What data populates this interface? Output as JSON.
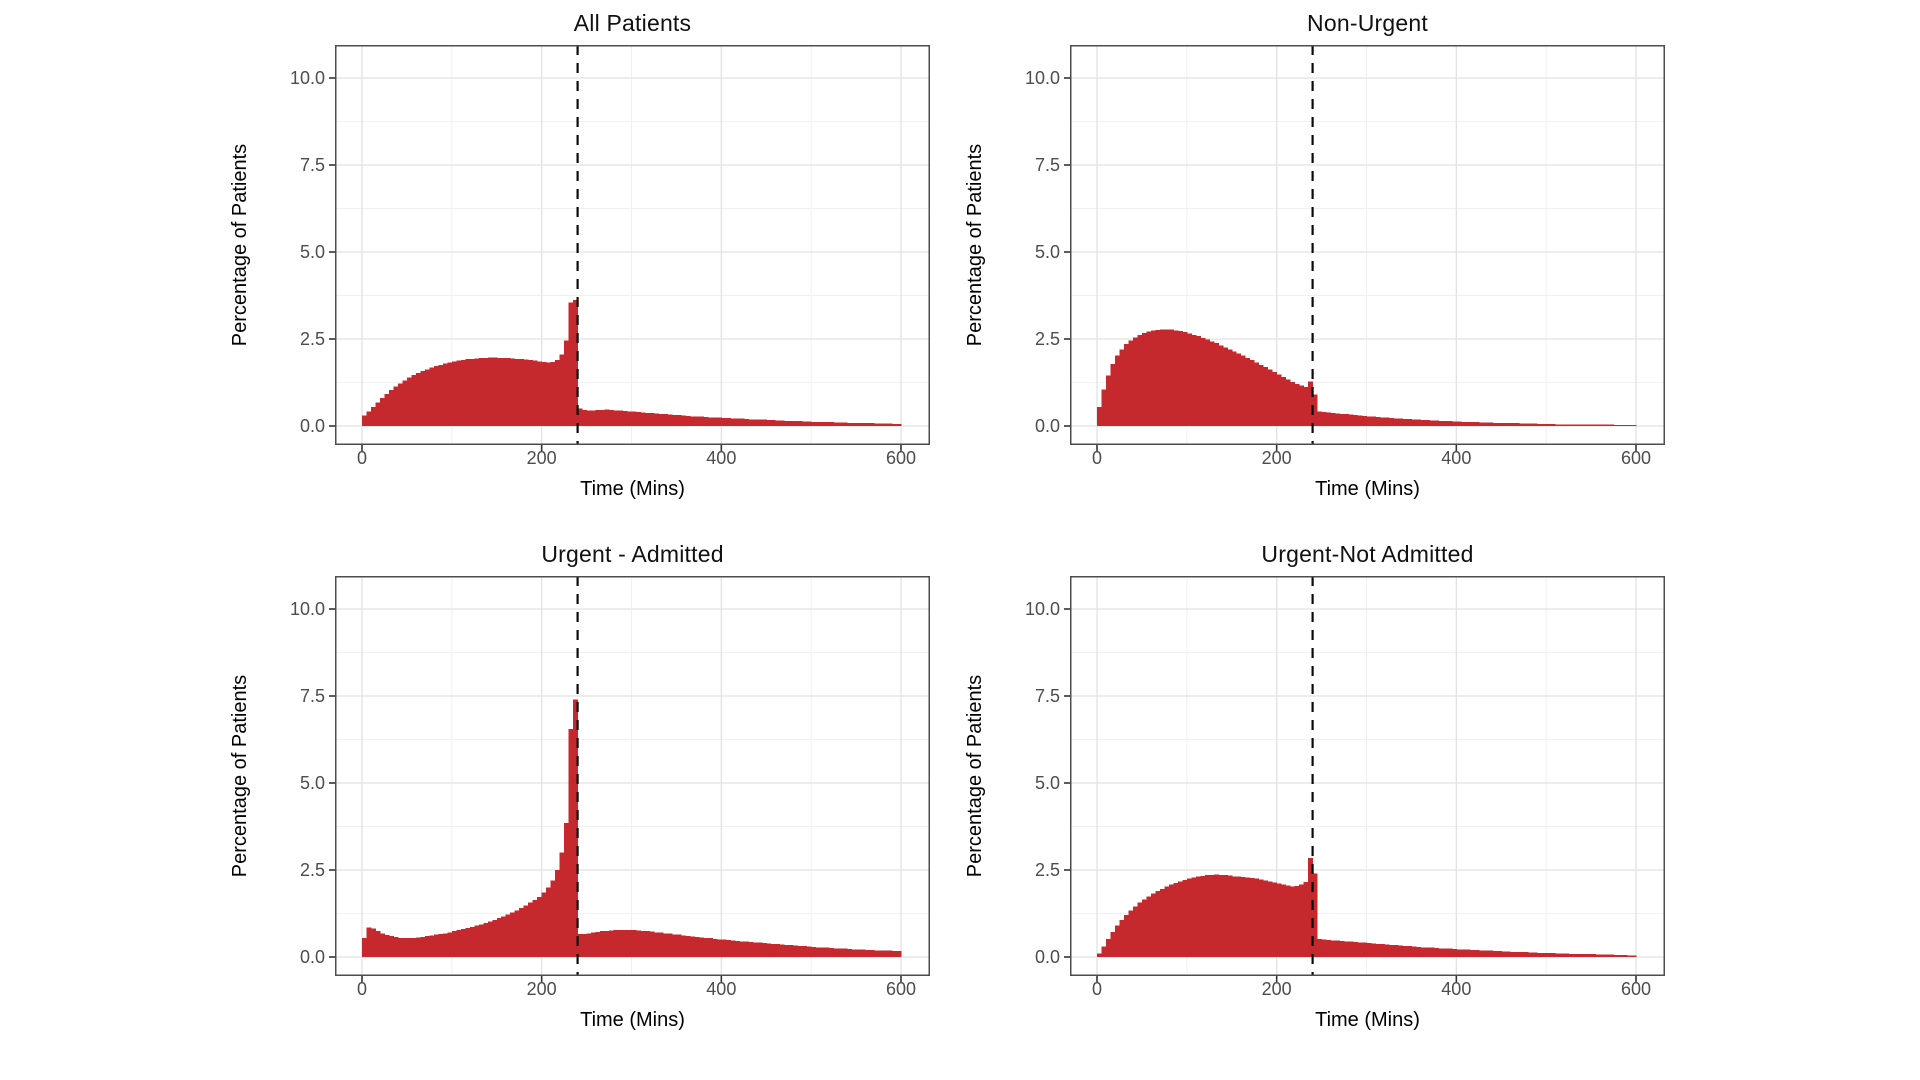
{
  "figure": {
    "y_axis_title": "Percentage of Patients",
    "x_axis_title": "Time (Mins)",
    "y_tick_labels": [
      "0.0",
      "2.5",
      "5.0",
      "7.5",
      "10.0"
    ],
    "x_tick_labels": [
      "0",
      "200",
      "400",
      "600"
    ],
    "colors": {
      "bar": "#C5282D",
      "grid_major": "#e2e2e2",
      "grid_minor": "#f0f0f0",
      "panel_border": "#4d4d4d",
      "tick_mark": "#333333",
      "tick_label": "#4d4d4d",
      "reference_line": "#0a0a0a",
      "background": "#ffffff"
    }
  },
  "chart_data": [
    {
      "type": "bar",
      "subtype": "histogram",
      "title": "All Patients",
      "xlabel": "Time (Mins)",
      "ylabel": "Percentage of Patients",
      "xlim": [
        0,
        620
      ],
      "ylim": [
        0,
        10.5
      ],
      "x_ticks": [
        0,
        200,
        400,
        600
      ],
      "x_minor": [
        100,
        300,
        500
      ],
      "y_ticks": [
        0,
        2.5,
        5,
        7.5,
        10
      ],
      "y_minor": [
        1.25,
        3.75,
        6.25,
        8.75
      ],
      "grid": true,
      "reference_line_x": 240,
      "bin_width_mins": 5,
      "bin_start_mins": 0,
      "values_percent": [
        0.3,
        0.42,
        0.55,
        0.68,
        0.8,
        0.92,
        1.03,
        1.13,
        1.22,
        1.31,
        1.39,
        1.46,
        1.52,
        1.58,
        1.63,
        1.68,
        1.72,
        1.76,
        1.8,
        1.83,
        1.86,
        1.88,
        1.9,
        1.92,
        1.93,
        1.94,
        1.95,
        1.96,
        1.97,
        1.97,
        1.96,
        1.96,
        1.95,
        1.94,
        1.93,
        1.92,
        1.91,
        1.9,
        1.88,
        1.86,
        1.84,
        1.82,
        1.84,
        1.9,
        2.05,
        2.45,
        3.55,
        3.62,
        0.5,
        0.46,
        0.45,
        0.45,
        0.46,
        0.46,
        0.47,
        0.46,
        0.45,
        0.44,
        0.43,
        0.42,
        0.41,
        0.4,
        0.39,
        0.38,
        0.37,
        0.36,
        0.35,
        0.34,
        0.33,
        0.32,
        0.31,
        0.3,
        0.29,
        0.28,
        0.28,
        0.27,
        0.26,
        0.25,
        0.25,
        0.24,
        0.23,
        0.23,
        0.22,
        0.21,
        0.21,
        0.2,
        0.19,
        0.19,
        0.18,
        0.18,
        0.17,
        0.17,
        0.16,
        0.16,
        0.15,
        0.15,
        0.14,
        0.14,
        0.13,
        0.13,
        0.12,
        0.12,
        0.11,
        0.11,
        0.11,
        0.1,
        0.1,
        0.1,
        0.09,
        0.09,
        0.09,
        0.08,
        0.08,
        0.08,
        0.07,
        0.07,
        0.07,
        0.07,
        0.06,
        0.06
      ]
    },
    {
      "type": "bar",
      "subtype": "histogram",
      "title": "Non-Urgent",
      "xlabel": "Time (Mins)",
      "ylabel": "Percentage of Patients",
      "xlim": [
        0,
        620
      ],
      "ylim": [
        0,
        10.5
      ],
      "x_ticks": [
        0,
        200,
        400,
        600
      ],
      "x_minor": [
        100,
        300,
        500
      ],
      "y_ticks": [
        0,
        2.5,
        5,
        7.5,
        10
      ],
      "y_minor": [
        1.25,
        3.75,
        6.25,
        8.75
      ],
      "grid": true,
      "reference_line_x": 240,
      "bin_width_mins": 5,
      "bin_start_mins": 0,
      "values_percent": [
        0.55,
        1.05,
        1.45,
        1.78,
        2.02,
        2.2,
        2.35,
        2.46,
        2.55,
        2.62,
        2.67,
        2.71,
        2.74,
        2.76,
        2.77,
        2.78,
        2.77,
        2.75,
        2.73,
        2.7,
        2.66,
        2.62,
        2.58,
        2.53,
        2.48,
        2.43,
        2.38,
        2.32,
        2.26,
        2.2,
        2.14,
        2.08,
        2.02,
        1.96,
        1.9,
        1.83,
        1.76,
        1.69,
        1.62,
        1.55,
        1.48,
        1.41,
        1.34,
        1.27,
        1.21,
        1.16,
        1.12,
        1.28,
        0.9,
        0.42,
        0.4,
        0.39,
        0.38,
        0.36,
        0.35,
        0.34,
        0.33,
        0.31,
        0.3,
        0.29,
        0.28,
        0.27,
        0.26,
        0.25,
        0.24,
        0.23,
        0.22,
        0.21,
        0.2,
        0.2,
        0.19,
        0.18,
        0.17,
        0.17,
        0.16,
        0.16,
        0.15,
        0.14,
        0.14,
        0.13,
        0.13,
        0.12,
        0.12,
        0.11,
        0.11,
        0.1,
        0.1,
        0.1,
        0.09,
        0.09,
        0.09,
        0.08,
        0.08,
        0.08,
        0.07,
        0.07,
        0.07,
        0.07,
        0.06,
        0.06,
        0.06,
        0.06,
        0.05,
        0.05,
        0.05,
        0.05,
        0.05,
        0.05,
        0.04,
        0.04,
        0.04,
        0.04,
        0.04,
        0.04,
        0.04,
        0.03,
        0.03,
        0.03,
        0.03,
        0.03
      ]
    },
    {
      "type": "bar",
      "subtype": "histogram",
      "title": "Urgent - Admitted",
      "xlabel": "Time (Mins)",
      "ylabel": "Percentage of Patients",
      "xlim": [
        0,
        620
      ],
      "ylim": [
        0,
        10.5
      ],
      "x_ticks": [
        0,
        200,
        400,
        600
      ],
      "x_minor": [
        100,
        300,
        500
      ],
      "y_ticks": [
        0,
        2.5,
        5,
        7.5,
        10
      ],
      "y_minor": [
        1.25,
        3.75,
        6.25,
        8.75
      ],
      "grid": true,
      "reference_line_x": 240,
      "bin_width_mins": 5,
      "bin_start_mins": 0,
      "values_percent": [
        0.55,
        0.85,
        0.82,
        0.75,
        0.68,
        0.63,
        0.6,
        0.57,
        0.55,
        0.54,
        0.54,
        0.55,
        0.56,
        0.58,
        0.6,
        0.62,
        0.64,
        0.66,
        0.68,
        0.71,
        0.74,
        0.77,
        0.8,
        0.83,
        0.86,
        0.9,
        0.94,
        0.98,
        1.02,
        1.07,
        1.12,
        1.17,
        1.22,
        1.28,
        1.34,
        1.41,
        1.48,
        1.56,
        1.64,
        1.73,
        1.85,
        2.0,
        2.2,
        2.5,
        3.0,
        3.85,
        6.55,
        7.4,
        0.66,
        0.66,
        0.68,
        0.7,
        0.72,
        0.74,
        0.75,
        0.76,
        0.77,
        0.78,
        0.78,
        0.78,
        0.77,
        0.76,
        0.75,
        0.74,
        0.73,
        0.71,
        0.7,
        0.68,
        0.67,
        0.65,
        0.64,
        0.62,
        0.61,
        0.59,
        0.58,
        0.56,
        0.55,
        0.54,
        0.52,
        0.51,
        0.5,
        0.49,
        0.47,
        0.46,
        0.45,
        0.44,
        0.43,
        0.42,
        0.41,
        0.4,
        0.39,
        0.38,
        0.37,
        0.36,
        0.35,
        0.34,
        0.33,
        0.32,
        0.31,
        0.3,
        0.29,
        0.28,
        0.28,
        0.27,
        0.26,
        0.25,
        0.25,
        0.24,
        0.23,
        0.22,
        0.22,
        0.21,
        0.2,
        0.2,
        0.19,
        0.19,
        0.18,
        0.18,
        0.17,
        0.17
      ]
    },
    {
      "type": "bar",
      "subtype": "histogram",
      "title": "Urgent-Not Admitted",
      "xlabel": "Time (Mins)",
      "ylabel": "Percentage of Patients",
      "xlim": [
        0,
        620
      ],
      "ylim": [
        0,
        10.5
      ],
      "x_ticks": [
        0,
        200,
        400,
        600
      ],
      "x_minor": [
        100,
        300,
        500
      ],
      "y_ticks": [
        0,
        2.5,
        5,
        7.5,
        10
      ],
      "y_minor": [
        1.25,
        3.75,
        6.25,
        8.75
      ],
      "grid": true,
      "reference_line_x": 240,
      "bin_width_mins": 5,
      "bin_start_mins": 0,
      "values_percent": [
        0.1,
        0.3,
        0.52,
        0.72,
        0.9,
        1.06,
        1.2,
        1.33,
        1.45,
        1.56,
        1.65,
        1.74,
        1.82,
        1.89,
        1.96,
        2.02,
        2.08,
        2.13,
        2.17,
        2.21,
        2.25,
        2.28,
        2.31,
        2.33,
        2.35,
        2.36,
        2.37,
        2.36,
        2.35,
        2.34,
        2.32,
        2.31,
        2.3,
        2.28,
        2.27,
        2.25,
        2.23,
        2.2,
        2.17,
        2.14,
        2.11,
        2.08,
        2.05,
        2.03,
        2.04,
        2.08,
        2.15,
        2.85,
        2.4,
        0.52,
        0.5,
        0.49,
        0.48,
        0.47,
        0.46,
        0.45,
        0.44,
        0.43,
        0.42,
        0.41,
        0.4,
        0.39,
        0.38,
        0.37,
        0.36,
        0.35,
        0.34,
        0.33,
        0.32,
        0.31,
        0.3,
        0.29,
        0.28,
        0.27,
        0.27,
        0.26,
        0.25,
        0.24,
        0.24,
        0.23,
        0.22,
        0.22,
        0.21,
        0.2,
        0.2,
        0.19,
        0.18,
        0.18,
        0.17,
        0.17,
        0.16,
        0.16,
        0.15,
        0.15,
        0.14,
        0.14,
        0.13,
        0.13,
        0.12,
        0.12,
        0.11,
        0.11,
        0.1,
        0.1,
        0.1,
        0.09,
        0.09,
        0.09,
        0.08,
        0.08,
        0.08,
        0.07,
        0.07,
        0.07,
        0.07,
        0.06,
        0.06,
        0.06,
        0.05,
        0.05
      ]
    }
  ]
}
